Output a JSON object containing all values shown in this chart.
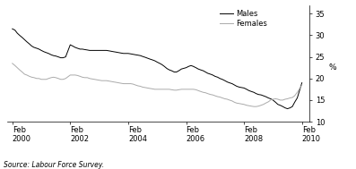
{
  "title": "",
  "ylabel": "%",
  "source_text": "Source: Labour Force Survey.",
  "ylim": [
    10,
    37
  ],
  "yticks": [
    10,
    15,
    20,
    25,
    30,
    35
  ],
  "x_tick_labels": [
    "Feb\n2000",
    "Feb\n2002",
    "Feb\n2004",
    "Feb\n2006",
    "Feb\n2008",
    "Feb\n2010"
  ],
  "x_tick_positions": [
    2000.08,
    2002.08,
    2004.08,
    2006.08,
    2008.08,
    2010.08
  ],
  "legend_labels": [
    "Males",
    "Females"
  ],
  "males_color": "#000000",
  "females_color": "#aaaaaa",
  "background_color": "#ffffff",
  "males_data": [
    [
      2000.08,
      31.5
    ],
    [
      2000.17,
      31.2
    ],
    [
      2000.25,
      30.5
    ],
    [
      2000.33,
      30.0
    ],
    [
      2000.42,
      29.5
    ],
    [
      2000.5,
      29.0
    ],
    [
      2000.58,
      28.5
    ],
    [
      2000.67,
      28.0
    ],
    [
      2000.75,
      27.5
    ],
    [
      2000.83,
      27.2
    ],
    [
      2000.92,
      27.0
    ],
    [
      2001.0,
      26.8
    ],
    [
      2001.08,
      26.5
    ],
    [
      2001.17,
      26.2
    ],
    [
      2001.25,
      26.0
    ],
    [
      2001.33,
      25.8
    ],
    [
      2001.42,
      25.5
    ],
    [
      2001.5,
      25.3
    ],
    [
      2001.58,
      25.2
    ],
    [
      2001.67,
      25.0
    ],
    [
      2001.75,
      24.8
    ],
    [
      2001.83,
      24.8
    ],
    [
      2001.92,
      25.0
    ],
    [
      2002.08,
      27.8
    ],
    [
      2002.17,
      27.5
    ],
    [
      2002.25,
      27.2
    ],
    [
      2002.33,
      27.0
    ],
    [
      2002.42,
      26.8
    ],
    [
      2002.5,
      26.8
    ],
    [
      2002.58,
      26.7
    ],
    [
      2002.67,
      26.6
    ],
    [
      2002.75,
      26.5
    ],
    [
      2002.83,
      26.5
    ],
    [
      2002.92,
      26.5
    ],
    [
      2003.0,
      26.5
    ],
    [
      2003.08,
      26.5
    ],
    [
      2003.17,
      26.5
    ],
    [
      2003.25,
      26.5
    ],
    [
      2003.33,
      26.5
    ],
    [
      2003.42,
      26.4
    ],
    [
      2003.5,
      26.3
    ],
    [
      2003.58,
      26.2
    ],
    [
      2003.67,
      26.1
    ],
    [
      2003.75,
      26.0
    ],
    [
      2003.83,
      25.9
    ],
    [
      2003.92,
      25.8
    ],
    [
      2004.08,
      25.8
    ],
    [
      2004.17,
      25.7
    ],
    [
      2004.25,
      25.6
    ],
    [
      2004.33,
      25.5
    ],
    [
      2004.42,
      25.4
    ],
    [
      2004.5,
      25.3
    ],
    [
      2004.58,
      25.1
    ],
    [
      2004.67,
      24.9
    ],
    [
      2004.75,
      24.7
    ],
    [
      2004.83,
      24.5
    ],
    [
      2004.92,
      24.3
    ],
    [
      2005.0,
      24.1
    ],
    [
      2005.08,
      23.8
    ],
    [
      2005.17,
      23.5
    ],
    [
      2005.25,
      23.2
    ],
    [
      2005.33,
      22.8
    ],
    [
      2005.42,
      22.3
    ],
    [
      2005.5,
      22.0
    ],
    [
      2005.58,
      21.8
    ],
    [
      2005.67,
      21.5
    ],
    [
      2005.75,
      21.5
    ],
    [
      2005.83,
      21.8
    ],
    [
      2005.92,
      22.2
    ],
    [
      2006.08,
      22.5
    ],
    [
      2006.17,
      22.8
    ],
    [
      2006.25,
      23.0
    ],
    [
      2006.33,
      22.8
    ],
    [
      2006.42,
      22.5
    ],
    [
      2006.5,
      22.2
    ],
    [
      2006.58,
      22.0
    ],
    [
      2006.67,
      21.8
    ],
    [
      2006.75,
      21.5
    ],
    [
      2006.83,
      21.2
    ],
    [
      2006.92,
      21.0
    ],
    [
      2007.0,
      20.8
    ],
    [
      2007.08,
      20.5
    ],
    [
      2007.17,
      20.3
    ],
    [
      2007.25,
      20.0
    ],
    [
      2007.33,
      19.8
    ],
    [
      2007.42,
      19.5
    ],
    [
      2007.5,
      19.2
    ],
    [
      2007.58,
      19.0
    ],
    [
      2007.67,
      18.8
    ],
    [
      2007.75,
      18.5
    ],
    [
      2007.83,
      18.2
    ],
    [
      2007.92,
      18.0
    ],
    [
      2008.08,
      17.8
    ],
    [
      2008.17,
      17.5
    ],
    [
      2008.25,
      17.2
    ],
    [
      2008.33,
      17.0
    ],
    [
      2008.42,
      16.8
    ],
    [
      2008.5,
      16.5
    ],
    [
      2008.58,
      16.3
    ],
    [
      2008.67,
      16.2
    ],
    [
      2008.75,
      16.0
    ],
    [
      2008.83,
      15.8
    ],
    [
      2008.92,
      15.5
    ],
    [
      2009.0,
      15.3
    ],
    [
      2009.08,
      15.0
    ],
    [
      2009.17,
      14.5
    ],
    [
      2009.25,
      14.0
    ],
    [
      2009.33,
      13.8
    ],
    [
      2009.42,
      13.5
    ],
    [
      2009.5,
      13.2
    ],
    [
      2009.58,
      13.0
    ],
    [
      2009.67,
      13.2
    ],
    [
      2009.75,
      13.5
    ],
    [
      2009.83,
      14.5
    ],
    [
      2009.92,
      15.5
    ],
    [
      2010.08,
      19.0
    ]
  ],
  "females_data": [
    [
      2000.08,
      23.5
    ],
    [
      2000.17,
      23.0
    ],
    [
      2000.25,
      22.5
    ],
    [
      2000.33,
      22.0
    ],
    [
      2000.42,
      21.5
    ],
    [
      2000.5,
      21.0
    ],
    [
      2000.58,
      20.8
    ],
    [
      2000.67,
      20.5
    ],
    [
      2000.75,
      20.3
    ],
    [
      2000.83,
      20.2
    ],
    [
      2000.92,
      20.0
    ],
    [
      2001.0,
      20.0
    ],
    [
      2001.08,
      19.8
    ],
    [
      2001.17,
      19.8
    ],
    [
      2001.25,
      19.8
    ],
    [
      2001.33,
      20.0
    ],
    [
      2001.42,
      20.2
    ],
    [
      2001.5,
      20.3
    ],
    [
      2001.58,
      20.2
    ],
    [
      2001.67,
      20.0
    ],
    [
      2001.75,
      19.8
    ],
    [
      2001.83,
      19.8
    ],
    [
      2001.92,
      20.0
    ],
    [
      2002.08,
      20.8
    ],
    [
      2002.17,
      20.8
    ],
    [
      2002.25,
      20.8
    ],
    [
      2002.33,
      20.7
    ],
    [
      2002.42,
      20.5
    ],
    [
      2002.5,
      20.3
    ],
    [
      2002.58,
      20.2
    ],
    [
      2002.67,
      20.2
    ],
    [
      2002.75,
      20.0
    ],
    [
      2002.83,
      19.9
    ],
    [
      2002.92,
      19.8
    ],
    [
      2003.0,
      19.7
    ],
    [
      2003.08,
      19.6
    ],
    [
      2003.17,
      19.5
    ],
    [
      2003.25,
      19.5
    ],
    [
      2003.33,
      19.5
    ],
    [
      2003.42,
      19.4
    ],
    [
      2003.5,
      19.3
    ],
    [
      2003.58,
      19.2
    ],
    [
      2003.67,
      19.1
    ],
    [
      2003.75,
      19.0
    ],
    [
      2003.83,
      18.9
    ],
    [
      2003.92,
      18.8
    ],
    [
      2004.08,
      18.8
    ],
    [
      2004.17,
      18.8
    ],
    [
      2004.25,
      18.7
    ],
    [
      2004.33,
      18.5
    ],
    [
      2004.42,
      18.3
    ],
    [
      2004.5,
      18.2
    ],
    [
      2004.58,
      18.0
    ],
    [
      2004.67,
      17.9
    ],
    [
      2004.75,
      17.8
    ],
    [
      2004.83,
      17.7
    ],
    [
      2004.92,
      17.6
    ],
    [
      2005.0,
      17.5
    ],
    [
      2005.08,
      17.5
    ],
    [
      2005.17,
      17.5
    ],
    [
      2005.25,
      17.5
    ],
    [
      2005.33,
      17.5
    ],
    [
      2005.42,
      17.5
    ],
    [
      2005.5,
      17.5
    ],
    [
      2005.58,
      17.4
    ],
    [
      2005.67,
      17.3
    ],
    [
      2005.75,
      17.3
    ],
    [
      2005.83,
      17.4
    ],
    [
      2005.92,
      17.5
    ],
    [
      2006.08,
      17.5
    ],
    [
      2006.17,
      17.5
    ],
    [
      2006.25,
      17.5
    ],
    [
      2006.33,
      17.5
    ],
    [
      2006.42,
      17.4
    ],
    [
      2006.5,
      17.2
    ],
    [
      2006.58,
      17.0
    ],
    [
      2006.67,
      16.8
    ],
    [
      2006.75,
      16.7
    ],
    [
      2006.83,
      16.5
    ],
    [
      2006.92,
      16.3
    ],
    [
      2007.0,
      16.2
    ],
    [
      2007.08,
      16.0
    ],
    [
      2007.17,
      15.8
    ],
    [
      2007.25,
      15.7
    ],
    [
      2007.33,
      15.5
    ],
    [
      2007.42,
      15.3
    ],
    [
      2007.5,
      15.2
    ],
    [
      2007.58,
      15.0
    ],
    [
      2007.67,
      14.8
    ],
    [
      2007.75,
      14.5
    ],
    [
      2007.83,
      14.3
    ],
    [
      2007.92,
      14.2
    ],
    [
      2008.08,
      14.0
    ],
    [
      2008.17,
      13.8
    ],
    [
      2008.25,
      13.7
    ],
    [
      2008.33,
      13.6
    ],
    [
      2008.42,
      13.5
    ],
    [
      2008.5,
      13.5
    ],
    [
      2008.58,
      13.6
    ],
    [
      2008.67,
      13.8
    ],
    [
      2008.75,
      14.0
    ],
    [
      2008.83,
      14.3
    ],
    [
      2008.92,
      14.6
    ],
    [
      2009.0,
      15.0
    ],
    [
      2009.08,
      15.2
    ],
    [
      2009.17,
      15.3
    ],
    [
      2009.25,
      15.2
    ],
    [
      2009.33,
      15.0
    ],
    [
      2009.42,
      15.0
    ],
    [
      2009.5,
      15.2
    ],
    [
      2009.58,
      15.3
    ],
    [
      2009.67,
      15.5
    ],
    [
      2009.75,
      15.6
    ],
    [
      2009.83,
      16.0
    ],
    [
      2009.92,
      16.8
    ],
    [
      2010.08,
      18.5
    ]
  ]
}
